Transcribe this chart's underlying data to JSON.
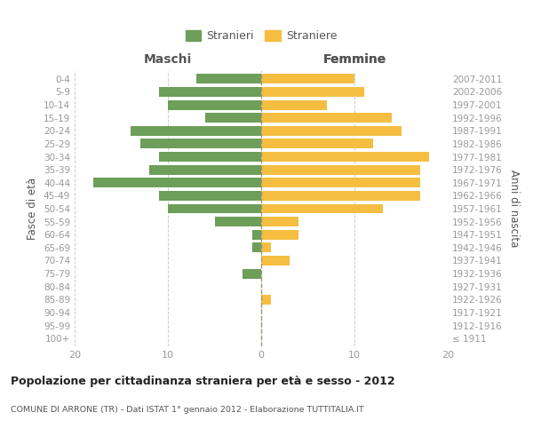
{
  "age_groups": [
    "100+",
    "95-99",
    "90-94",
    "85-89",
    "80-84",
    "75-79",
    "70-74",
    "65-69",
    "60-64",
    "55-59",
    "50-54",
    "45-49",
    "40-44",
    "35-39",
    "30-34",
    "25-29",
    "20-24",
    "15-19",
    "10-14",
    "5-9",
    "0-4"
  ],
  "birth_years": [
    "≤ 1911",
    "1912-1916",
    "1917-1921",
    "1922-1926",
    "1927-1931",
    "1932-1936",
    "1937-1941",
    "1942-1946",
    "1947-1951",
    "1952-1956",
    "1957-1961",
    "1962-1966",
    "1967-1971",
    "1972-1976",
    "1977-1981",
    "1982-1986",
    "1987-1991",
    "1992-1996",
    "1997-2001",
    "2002-2006",
    "2007-2011"
  ],
  "maschi": [
    0,
    0,
    0,
    0,
    0,
    2,
    0,
    1,
    1,
    5,
    10,
    11,
    18,
    12,
    11,
    13,
    14,
    6,
    10,
    11,
    7
  ],
  "femmine": [
    0,
    0,
    0,
    1,
    0,
    0,
    3,
    1,
    4,
    4,
    13,
    17,
    17,
    17,
    18,
    12,
    15,
    14,
    7,
    11,
    10
  ],
  "maschi_color": "#6d9e5a",
  "femmine_color": "#f5be41",
  "title": "Popolazione per cittadinanza straniera per età e sesso - 2012",
  "subtitle": "COMUNE DI ARRONE (TR) - Dati ISTAT 1° gennaio 2012 - Elaborazione TUTTITALIA.IT",
  "xlabel_left": "Maschi",
  "xlabel_right": "Femmine",
  "ylabel_left": "Fasce di età",
  "ylabel_right": "Anni di nascita",
  "xlim": 20,
  "legend_stranieri": "Stranieri",
  "legend_straniere": "Straniere",
  "bg_color": "#ffffff",
  "grid_color": "#cccccc",
  "bar_height": 0.75,
  "tick_label_color": "#999999",
  "axis_label_color": "#555555",
  "title_color": "#222222",
  "subtitle_color": "#555555"
}
